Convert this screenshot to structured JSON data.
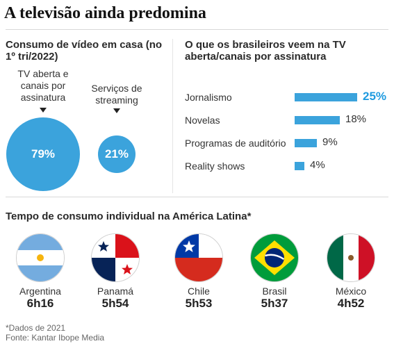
{
  "title": "A televisão ainda predomina",
  "chart_data": [
    {
      "type": "bubble",
      "title": "Consumo de vídeo em casa (no 1º tri/2022)",
      "categories": [
        "TV aberta e canais por assinatura",
        "Serviços de streaming"
      ],
      "values": [
        79,
        21
      ],
      "value_labels": [
        "79%",
        "21%"
      ],
      "color": "#3ba3dc"
    },
    {
      "type": "bar",
      "orientation": "horizontal",
      "title": "O que os brasileiros veem na TV aberta/canais por assinatura",
      "categories": [
        "Jornalismo",
        "Novelas",
        "Programas de auditório",
        "Reality shows"
      ],
      "values": [
        25,
        18,
        9,
        4
      ],
      "value_labels": [
        "25%",
        "18%",
        "9%",
        "4%"
      ],
      "xlim": [
        0,
        25
      ],
      "color": "#3ba3dc",
      "highlight_color": "#1f9be0"
    },
    {
      "type": "table",
      "title": "Tempo de consumo individual na América Latina*",
      "categories": [
        "Argentina",
        "Panamá",
        "Chile",
        "Brasil",
        "México"
      ],
      "values": [
        "6h16",
        "5h54",
        "5h53",
        "5h37",
        "4h52"
      ]
    }
  ],
  "footnote": "*Dados de 2021",
  "source": "Fonte: Kantar Ibope Media"
}
